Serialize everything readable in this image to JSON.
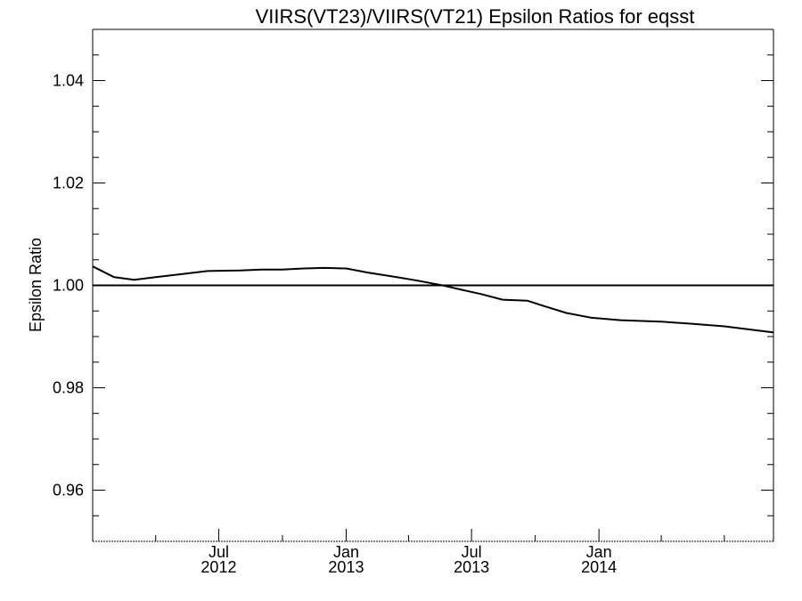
{
  "chart_data": {
    "type": "line",
    "title": "VIIRS(VT23)/VIIRS(VT21)  Epsilon Ratios for eqsst",
    "xlabel": "",
    "ylabel": "Epsilon Ratio",
    "xlim": [
      "2012-01-01",
      "2014-09-10"
    ],
    "ylim": [
      0.95,
      1.05
    ],
    "yticks": [
      0.96,
      0.98,
      1.0,
      1.02,
      1.04
    ],
    "ytick_labels": [
      "0.96",
      "0.98",
      "1.00",
      "1.02",
      "1.04"
    ],
    "xticks": [
      {
        "date": "2012-07-01",
        "month": "Jul",
        "year": "2012"
      },
      {
        "date": "2013-01-01",
        "month": "Jan",
        "year": "2013"
      },
      {
        "date": "2013-07-01",
        "month": "Jul",
        "year": "2013"
      },
      {
        "date": "2014-01-01",
        "month": "Jan",
        "year": "2014"
      }
    ],
    "reference_line": 1.0,
    "grid": false,
    "series": [
      {
        "color": "#000000",
        "points": [
          {
            "x": "2012-01-01",
            "y": 1.0037
          },
          {
            "x": "2012-02-01",
            "y": 1.0016
          },
          {
            "x": "2012-03-01",
            "y": 1.0011
          },
          {
            "x": "2012-04-01",
            "y": 1.0016
          },
          {
            "x": "2012-05-15",
            "y": 1.0023
          },
          {
            "x": "2012-06-15",
            "y": 1.0028
          },
          {
            "x": "2012-08-01",
            "y": 1.0029
          },
          {
            "x": "2012-09-01",
            "y": 1.0031
          },
          {
            "x": "2012-10-01",
            "y": 1.0031
          },
          {
            "x": "2012-11-01",
            "y": 1.0033
          },
          {
            "x": "2012-12-01",
            "y": 1.0034
          },
          {
            "x": "2013-01-01",
            "y": 1.0033
          },
          {
            "x": "2013-02-01",
            "y": 1.0025
          },
          {
            "x": "2013-03-15",
            "y": 1.0016
          },
          {
            "x": "2013-04-15",
            "y": 1.0009
          },
          {
            "x": "2013-05-20",
            "y": 1.0
          },
          {
            "x": "2013-06-15",
            "y": 0.9992
          },
          {
            "x": "2013-07-15",
            "y": 0.9983
          },
          {
            "x": "2013-08-15",
            "y": 0.9972
          },
          {
            "x": "2013-09-20",
            "y": 0.997
          },
          {
            "x": "2013-10-15",
            "y": 0.9959
          },
          {
            "x": "2013-11-15",
            "y": 0.9946
          },
          {
            "x": "2013-12-20",
            "y": 0.9937
          },
          {
            "x": "2014-02-01",
            "y": 0.9932
          },
          {
            "x": "2014-04-01",
            "y": 0.9929
          },
          {
            "x": "2014-05-15",
            "y": 0.9925
          },
          {
            "x": "2014-07-01",
            "y": 0.992
          },
          {
            "x": "2014-09-10",
            "y": 0.9908
          }
        ]
      }
    ]
  }
}
